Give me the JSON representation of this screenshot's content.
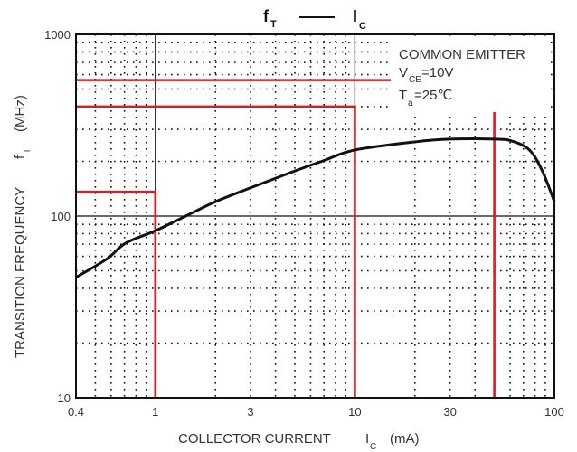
{
  "chart_data": {
    "type": "line",
    "title": "fT — IC",
    "title_parts": {
      "left": "f",
      "left_sub": "T",
      "dash": "——",
      "right": "I",
      "right_sub": "C"
    },
    "xlabel": "COLLECTOR CURRENT   IC   (mA)",
    "xlabel_parts": {
      "main": "COLLECTOR CURRENT",
      "sym": "I",
      "sym_sub": "C",
      "unit": "(mA)"
    },
    "ylabel": "TRANSITION FREQUENCY   fT   (MHz)",
    "ylabel_parts": {
      "main": "TRANSITION FREQUENCY",
      "sym": "f",
      "sym_sub": "T",
      "unit": "(MHz)"
    },
    "xscale": "log",
    "yscale": "log",
    "xlim": [
      0.4,
      100
    ],
    "ylim": [
      10,
      1000
    ],
    "x_ticks": [
      0.4,
      1,
      3,
      10,
      30,
      100
    ],
    "x_tick_labels": [
      "0.4",
      "1",
      "3",
      "10",
      "30",
      "100"
    ],
    "y_ticks": [
      10,
      100,
      1000
    ],
    "y_tick_labels": [
      "10",
      "100",
      "1000"
    ],
    "grid": "dotted log minor grid, solid major lines at 1, 10 mA and 100 MHz",
    "annotations": [
      {
        "text": "COMMON EMITTER"
      },
      {
        "text": "VCE=10V",
        "main": "V",
        "sub": "CE",
        "rest": "=10V"
      },
      {
        "text": "Ta=25℃",
        "main": "T",
        "sub": "a",
        "rest": "=25℃"
      }
    ],
    "series": [
      {
        "name": "fT",
        "color": "#111111",
        "x": [
          0.4,
          0.57,
          0.71,
          1,
          1.42,
          2,
          3,
          5,
          7,
          10,
          20,
          30,
          50,
          61,
          75,
          87,
          100
        ],
        "y": [
          46,
          58,
          71,
          83,
          100,
          120,
          143,
          177,
          202,
          231,
          256,
          265,
          265,
          259,
          231,
          177,
          120
        ]
      }
    ],
    "reference_lines": [
      {
        "name": "marker-1mA",
        "color": "#e0191c",
        "x": 1,
        "y": 136
      },
      {
        "name": "marker-10mA",
        "color": "#e0191c",
        "x": 10,
        "y": 400
      },
      {
        "name": "marker-50mA",
        "color": "#e0191c",
        "x": 50,
        "y": 560
      }
    ]
  }
}
